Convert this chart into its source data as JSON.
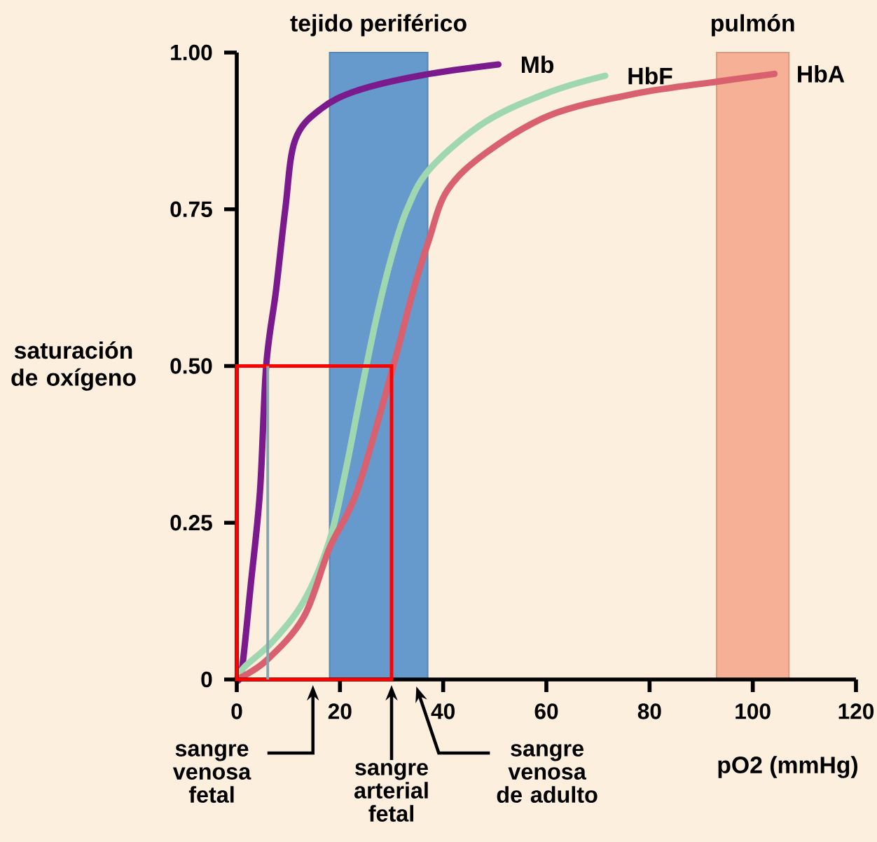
{
  "chart_data": {
    "type": "line",
    "xlabel": "pO2 (mmHg)",
    "ylabel": "saturación de oxígeno",
    "xlim": [
      0,
      120
    ],
    "ylim": [
      0,
      1
    ],
    "xticks": [
      0,
      20,
      40,
      60,
      80,
      100,
      120
    ],
    "yticks": [
      {
        "value": 0,
        "label": "0"
      },
      {
        "value": 0.25,
        "label": "0.25"
      },
      {
        "value": 0.5,
        "label": "0.50"
      },
      {
        "value": 0.75,
        "label": "0.75"
      },
      {
        "value": 1,
        "label": "1.00"
      }
    ],
    "series": [
      {
        "name": "Mb",
        "color": "#7b1a8c",
        "x": [
          0,
          1,
          2.7,
          4.5,
          5.7,
          7.6,
          9.4,
          11.3,
          16.3,
          23.6,
          36,
          50.7
        ],
        "values": [
          0,
          0.016,
          0.15,
          0.3,
          0.5,
          0.62,
          0.75,
          0.86,
          0.91,
          0.94,
          0.964,
          0.981
        ]
      },
      {
        "name": "HbF",
        "color": "#9fd8b0",
        "x": [
          0,
          1.5,
          6.9,
          13,
          17.9,
          20.9,
          23.9,
          27,
          30,
          33,
          37.6,
          48.3,
          60.7,
          71.4
        ],
        "values": [
          0,
          0.02,
          0.06,
          0.125,
          0.22,
          0.325,
          0.45,
          0.574,
          0.674,
          0.75,
          0.816,
          0.89,
          0.937,
          0.963
        ]
      },
      {
        "name": "HbA",
        "color": "#d9606e",
        "x": [
          0,
          5.7,
          13,
          18,
          23.3,
          30,
          34.2,
          37.2,
          40.8,
          48.3,
          60.7,
          77,
          93.5,
          104.2
        ],
        "values": [
          0,
          0.03,
          0.1,
          0.21,
          0.3,
          0.49,
          0.62,
          0.7,
          0.78,
          0.84,
          0.9,
          0.934,
          0.954,
          0.966
        ]
      }
    ],
    "bands": [
      {
        "axis": "x",
        "from": 18,
        "to": 37,
        "label": "tejido periférico",
        "color": "#6699cc"
      },
      {
        "axis": "x",
        "from": 93,
        "to": 107,
        "label": "pulmón",
        "color": "#f5b096"
      }
    ],
    "annotations": [
      "sangre venosa fetal",
      "sangre arterial fetal",
      "sangre venosa de adulto"
    ]
  }
}
